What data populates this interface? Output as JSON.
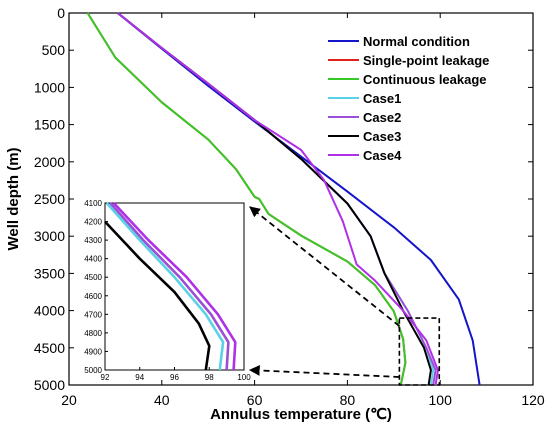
{
  "chart_data": {
    "type": "line",
    "xlabel": "Annulus temperature (℃)",
    "ylabel": "Well depth (m)",
    "xlim": [
      20,
      120
    ],
    "ylim": [
      0,
      5000
    ],
    "y_reversed": true,
    "xticks": [
      "20",
      "40",
      "60",
      "80",
      "100",
      "120"
    ],
    "yticks": [
      "0",
      "500",
      "1000",
      "1500",
      "2000",
      "2500",
      "3000",
      "3500",
      "4000",
      "4500",
      "5000"
    ],
    "legend_placement": "top-right",
    "series": [
      {
        "name": "Normal condition",
        "color": "#1414c8",
        "points": [
          [
            30.5,
            0
          ],
          [
            40,
            480
          ],
          [
            50,
            980
          ],
          [
            60,
            1460
          ],
          [
            70,
            1930
          ],
          [
            80,
            2400
          ],
          [
            90,
            2880
          ],
          [
            98,
            3320
          ],
          [
            104,
            3850
          ],
          [
            107,
            4400
          ],
          [
            108.5,
            5000
          ]
        ]
      },
      {
        "name": "Single-point leakage",
        "color": "#e0201a",
        "points": [
          [
            24,
            0
          ],
          [
            30,
            600
          ],
          [
            40,
            1200
          ],
          [
            50,
            1700
          ],
          [
            56,
            2100
          ],
          [
            60,
            2470
          ],
          [
            61,
            2500
          ],
          [
            63,
            2700
          ],
          [
            70,
            2990
          ],
          [
            80,
            3340
          ],
          [
            86,
            3660
          ],
          [
            90,
            4010
          ],
          [
            92,
            4380
          ],
          [
            92.5,
            4700
          ],
          [
            91.5,
            5000
          ]
        ]
      },
      {
        "name": "Continuous leakage",
        "color": "#36c928",
        "points": [
          [
            24,
            0
          ],
          [
            30,
            600
          ],
          [
            40,
            1200
          ],
          [
            50,
            1700
          ],
          [
            56,
            2100
          ],
          [
            60,
            2470
          ],
          [
            61,
            2500
          ],
          [
            63,
            2700
          ],
          [
            70,
            2990
          ],
          [
            80,
            3340
          ],
          [
            86,
            3660
          ],
          [
            90,
            4010
          ],
          [
            92,
            4380
          ],
          [
            92.5,
            4700
          ],
          [
            91.5,
            5000
          ]
        ]
      },
      {
        "name": "Case1",
        "color": "#5ad2e6",
        "points": [
          [
            30.5,
            0
          ],
          [
            40,
            470
          ],
          [
            50,
            950
          ],
          [
            60,
            1440
          ],
          [
            70,
            1960
          ],
          [
            80,
            2560
          ],
          [
            85,
            3000
          ],
          [
            88,
            3500
          ],
          [
            93,
            4000
          ],
          [
            97,
            4500
          ],
          [
            98.5,
            4800
          ],
          [
            98,
            5000
          ]
        ]
      },
      {
        "name": "Case2",
        "color": "#9a4fd6",
        "points": [
          [
            30.5,
            0
          ],
          [
            40,
            470
          ],
          [
            50,
            950
          ],
          [
            60,
            1440
          ],
          [
            70,
            1960
          ],
          [
            80,
            2560
          ],
          [
            85,
            3000
          ],
          [
            88,
            3500
          ],
          [
            93,
            4000
          ],
          [
            97,
            4500
          ],
          [
            99,
            4800
          ],
          [
            98.5,
            5000
          ]
        ]
      },
      {
        "name": "Case3",
        "color": "#000000",
        "points": [
          [
            30.5,
            0
          ],
          [
            40,
            470
          ],
          [
            50,
            950
          ],
          [
            60,
            1440
          ],
          [
            70,
            1960
          ],
          [
            80,
            2560
          ],
          [
            85,
            3000
          ],
          [
            88,
            3500
          ],
          [
            92,
            4000
          ],
          [
            96.5,
            4500
          ],
          [
            98,
            4800
          ],
          [
            97.5,
            5000
          ]
        ]
      },
      {
        "name": "Case4",
        "color": "#b030e8",
        "points": [
          [
            30.5,
            0
          ],
          [
            40,
            470
          ],
          [
            50,
            950
          ],
          [
            60,
            1440
          ],
          [
            70,
            1840
          ],
          [
            75,
            2250
          ],
          [
            79,
            2800
          ],
          [
            82,
            3380
          ],
          [
            86,
            3600
          ],
          [
            92,
            4000
          ],
          [
            97,
            4400
          ],
          [
            99.5,
            4800
          ],
          [
            99,
            5000
          ]
        ]
      }
    ],
    "inset": {
      "xlim": [
        92,
        100
      ],
      "ylim": [
        4100,
        5000
      ],
      "xticks": [
        "92",
        "94",
        "96",
        "98",
        "100"
      ],
      "yticks": [
        "4100",
        "4200",
        "4300",
        "4400",
        "4500",
        "4600",
        "4700",
        "4800",
        "4900",
        "5000"
      ],
      "series": [
        {
          "color": "#9a4fd6",
          "points": [
            [
              92.3,
              4100
            ],
            [
              94.2,
              4300
            ],
            [
              96.3,
              4500
            ],
            [
              98.1,
              4700
            ],
            [
              99.1,
              4850
            ],
            [
              99.0,
              5000
            ]
          ]
        },
        {
          "color": "#b030e8",
          "points": [
            [
              92.5,
              4100
            ],
            [
              94.5,
              4300
            ],
            [
              96.7,
              4500
            ],
            [
              98.5,
              4700
            ],
            [
              99.5,
              4850
            ],
            [
              99.4,
              5000
            ]
          ]
        },
        {
          "color": "#5ad2e6",
          "points": [
            [
              92.1,
              4100
            ],
            [
              94.0,
              4300
            ],
            [
              96.0,
              4500
            ],
            [
              97.8,
              4700
            ],
            [
              98.8,
              4850
            ],
            [
              98.6,
              5000
            ]
          ]
        },
        {
          "color": "#000000",
          "points": [
            [
              92.0,
              4200
            ],
            [
              94.0,
              4400
            ],
            [
              96.0,
              4580
            ],
            [
              97.4,
              4750
            ],
            [
              98.0,
              4870
            ],
            [
              97.8,
              5000
            ]
          ]
        }
      ]
    },
    "zoom_box": {
      "x": [
        91.2,
        99.8
      ],
      "y": [
        4100,
        5000
      ]
    }
  }
}
